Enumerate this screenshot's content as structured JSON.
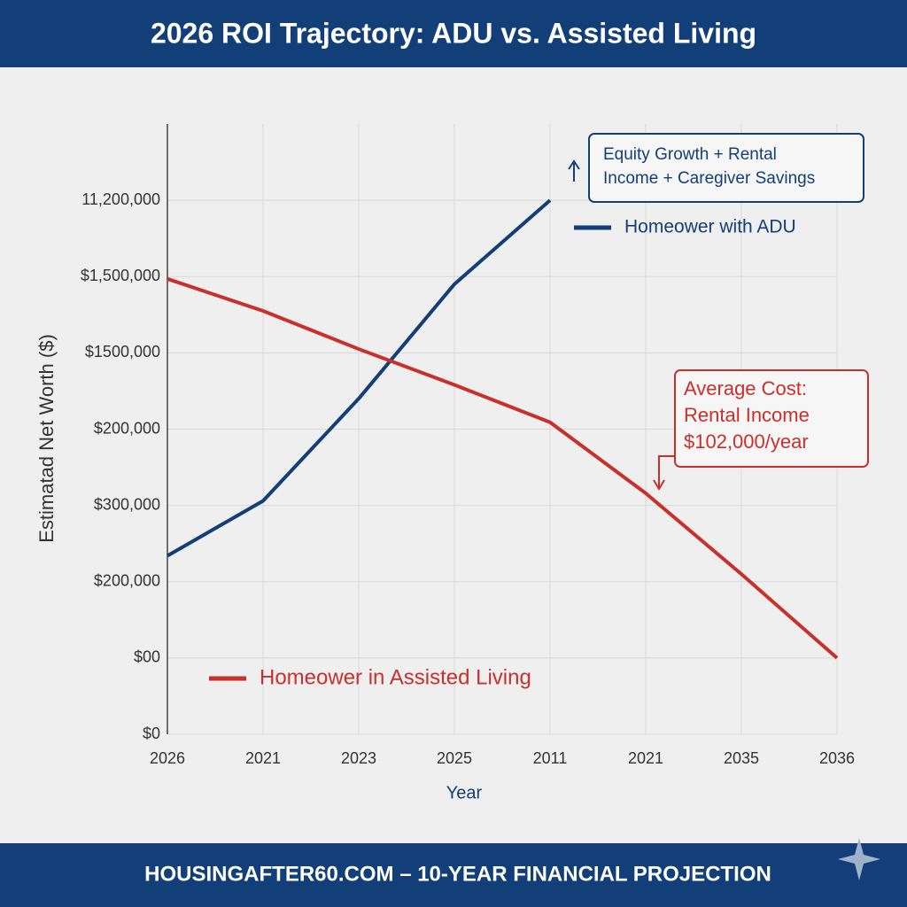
{
  "chart_data": {
    "type": "line",
    "title": "2026 ROI Trajectory: ADU vs. Assisted Living",
    "footer": "HOUSINGAFTER60.COM – 10-YEAR FINANCIAL PROJECTION",
    "x_label": "Year",
    "y_label": "Estimatad Net Worth ($)",
    "categories": [
      "2026",
      "2021",
      "2023",
      "2025",
      "2011",
      "2021",
      "2035",
      "2036"
    ],
    "ylim": [
      0,
      8
    ],
    "yticks": [
      {
        "value": 0,
        "label": "$0"
      },
      {
        "value": 1,
        "label": "$00"
      },
      {
        "value": 2,
        "label": "$200,000"
      },
      {
        "value": 3,
        "label": "$300,000"
      },
      {
        "value": 4,
        "label": "$200,000"
      },
      {
        "value": 5,
        "label": "$1500,000"
      },
      {
        "value": 6,
        "label": "$1,500,000"
      },
      {
        "value": 7,
        "label": "11,200,000"
      }
    ],
    "grid": true,
    "series": [
      {
        "name": "Homeower with ADU",
        "color": "#123f78",
        "values": [
          2.34,
          3.06,
          4.4,
          5.9,
          7.0,
          null,
          null,
          null
        ]
      },
      {
        "name": "Homeower in Assisted Living",
        "color": "#c9302c",
        "values": [
          5.97,
          5.55,
          5.05,
          4.58,
          4.09,
          3.16,
          2.1,
          1.0
        ]
      }
    ],
    "annotations": [
      {
        "lines": [
          "Equity Growth + Rental",
          "Income + Caregiver Savings"
        ],
        "color": "#123f78"
      },
      {
        "lines": [
          "Average Cost:",
          "Rental Income",
          "$102,000/year"
        ],
        "color": "#c9302c"
      }
    ]
  }
}
